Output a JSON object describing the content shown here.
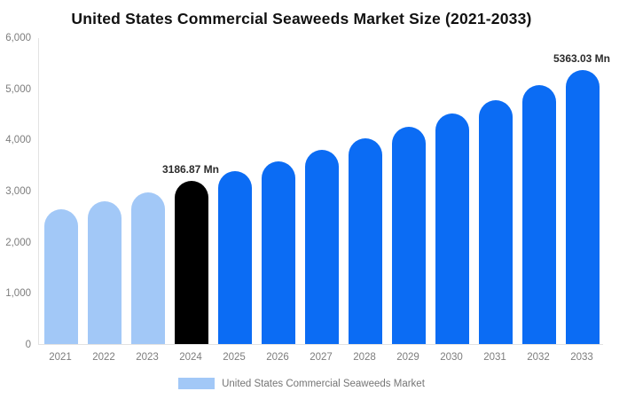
{
  "title": "United States Commercial Seaweeds Market Size (2021-2033)",
  "legend": {
    "label": "United States Commercial Seaweeds Market",
    "swatch_color": "#a2c8f7"
  },
  "colors": {
    "historical_bar": "#a2c8f7",
    "base_year_bar": "#000000",
    "forecast_bar": "#0b6cf4",
    "axis_line": "#e2e2e2",
    "axis_text": "#7d7d7d",
    "title_text": "#111111",
    "point_label_text": "#2b2b2b",
    "background": "#ffffff"
  },
  "chart_data": {
    "type": "bar",
    "title": "United States Commercial Seaweeds Market Size (2021-2033)",
    "categories": [
      "2021",
      "2022",
      "2023",
      "2024",
      "2025",
      "2026",
      "2027",
      "2028",
      "2029",
      "2030",
      "2031",
      "2032",
      "2033"
    ],
    "values": [
      2630,
      2785,
      2970,
      3186.87,
      3376,
      3577,
      3790,
      4016,
      4254,
      4508,
      4776,
      5060,
      5363.03
    ],
    "bar_colors": [
      "#a2c8f7",
      "#a2c8f7",
      "#a2c8f7",
      "#000000",
      "#0b6cf4",
      "#0b6cf4",
      "#0b6cf4",
      "#0b6cf4",
      "#0b6cf4",
      "#0b6cf4",
      "#0b6cf4",
      "#0b6cf4",
      "#0b6cf4"
    ],
    "point_labels": [
      {
        "index": 3,
        "text": "3186.87 Mn"
      },
      {
        "index": 12,
        "text": "5363.03 Mn"
      }
    ],
    "xlabel": "",
    "ylabel": "",
    "ylim": [
      0,
      6000
    ],
    "ytick_values": [
      6000,
      5000,
      4000,
      3000,
      2000,
      1000,
      0
    ],
    "ytick_labels": [
      "6,000",
      "5,000",
      "4,000",
      "3,000",
      "2,000",
      "1,000",
      "0"
    ],
    "grid": false,
    "legend_position": "bottom",
    "legend_entries": [
      "United States Commercial Seaweeds Market"
    ]
  }
}
